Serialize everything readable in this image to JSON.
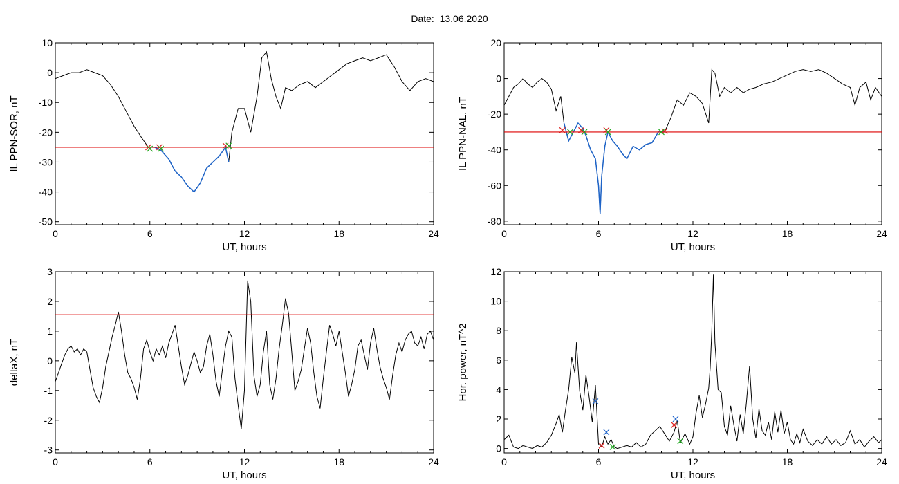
{
  "date_label": "Date:  13.06.2020",
  "colors": {
    "trace": "#000000",
    "threshold": "#dd0000",
    "highlight": "#1e64c8",
    "marker_red": "#dd2222",
    "marker_green": "#22aa22",
    "marker_blue": "#2266cc"
  },
  "chart_data": [
    {
      "type": "line",
      "title": "",
      "xlabel": "UT, hours",
      "ylabel": "IL PPN-SOR, nT",
      "xlim": [
        0,
        24
      ],
      "ylim": [
        -51,
        10
      ],
      "xticks": [
        0,
        6,
        12,
        18,
        24
      ],
      "yticks": [
        10,
        0,
        -10,
        -20,
        -30,
        -40,
        -50
      ],
      "threshold": -25,
      "highlight_range": [
        5.9,
        11.0
      ],
      "series": [
        {
          "x": [
            0,
            0.5,
            1,
            1.5,
            2,
            2.5,
            3,
            3.5,
            4,
            4.5,
            5,
            5.5,
            5.9,
            6.3,
            6.7,
            7.2,
            7.6,
            8,
            8.4,
            8.8,
            9.2,
            9.6,
            10,
            10.4,
            10.8,
            11,
            11.2,
            11.6,
            12,
            12.4,
            12.8,
            13.1,
            13.4,
            13.7,
            14,
            14.3,
            14.6,
            15,
            15.5,
            16,
            16.5,
            17,
            17.5,
            18,
            18.5,
            19,
            19.5,
            20,
            20.5,
            21,
            21.5,
            22,
            22.5,
            23,
            23.5,
            24
          ],
          "y": [
            -2,
            -1,
            0,
            0,
            1,
            0,
            -1,
            -4,
            -8,
            -13,
            -18,
            -22,
            -25,
            -25,
            -26,
            -29,
            -33,
            -35,
            -38,
            -40,
            -37,
            -32,
            -30,
            -28,
            -25,
            -30,
            -20,
            -12,
            -12,
            -20,
            -8,
            5,
            7,
            -2,
            -8,
            -12,
            -5,
            -6,
            -4,
            -3,
            -5,
            -3,
            -1,
            1,
            3,
            4,
            5,
            4,
            5,
            6,
            2,
            -3,
            -6,
            -3,
            -2,
            -3
          ]
        }
      ],
      "markers": [
        {
          "x": 5.9,
          "y": -25,
          "color": "red"
        },
        {
          "x": 6.0,
          "y": -25.5,
          "color": "green"
        },
        {
          "x": 6.6,
          "y": -25,
          "color": "red"
        },
        {
          "x": 6.7,
          "y": -25.5,
          "color": "green"
        },
        {
          "x": 10.8,
          "y": -24.5,
          "color": "red"
        },
        {
          "x": 11.0,
          "y": -24.5,
          "color": "green"
        }
      ]
    },
    {
      "type": "line",
      "title": "",
      "xlabel": "UT, hours",
      "ylabel": "IL PPN-NAL, nT",
      "xlim": [
        0,
        24
      ],
      "ylim": [
        -82,
        20
      ],
      "xticks": [
        0,
        6,
        12,
        18,
        24
      ],
      "yticks": [
        20,
        0,
        -20,
        -40,
        -60,
        -80
      ],
      "threshold": -30,
      "highlight_range": [
        3.8,
        10.2
      ],
      "series": [
        {
          "x": [
            0,
            0.3,
            0.6,
            0.9,
            1.2,
            1.5,
            1.8,
            2.1,
            2.4,
            2.7,
            3,
            3.3,
            3.6,
            3.8,
            4.1,
            4.4,
            4.7,
            5,
            5.2,
            5.5,
            5.8,
            6,
            6.1,
            6.2,
            6.4,
            6.6,
            6.9,
            7.2,
            7.5,
            7.8,
            8.2,
            8.6,
            9,
            9.4,
            9.8,
            10.2,
            10.6,
            11,
            11.4,
            11.8,
            12.2,
            12.6,
            13,
            13.2,
            13.4,
            13.7,
            14,
            14.4,
            14.8,
            15.2,
            15.6,
            16,
            16.5,
            17,
            17.5,
            18,
            18.5,
            19,
            19.5,
            20,
            20.5,
            21,
            21.5,
            22,
            22.3,
            22.6,
            23,
            23.3,
            23.6,
            24
          ],
          "y": [
            -15,
            -10,
            -5,
            -3,
            0,
            -3,
            -5,
            -2,
            0,
            -2,
            -6,
            -18,
            -10,
            -25,
            -35,
            -30,
            -25,
            -28,
            -32,
            -40,
            -45,
            -60,
            -76,
            -55,
            -38,
            -30,
            -35,
            -38,
            -42,
            -45,
            -38,
            -40,
            -37,
            -36,
            -30,
            -30,
            -22,
            -12,
            -15,
            -8,
            -10,
            -14,
            -25,
            5,
            3,
            -10,
            -5,
            -8,
            -5,
            -8,
            -6,
            -5,
            -3,
            -2,
            0,
            2,
            4,
            5,
            4,
            5,
            3,
            0,
            -3,
            -5,
            -15,
            -5,
            -2,
            -12,
            -5,
            -10
          ]
        }
      ],
      "markers": [
        {
          "x": 3.7,
          "y": -29,
          "color": "red"
        },
        {
          "x": 4.2,
          "y": -30,
          "color": "green"
        },
        {
          "x": 4.9,
          "y": -29,
          "color": "red"
        },
        {
          "x": 5.1,
          "y": -30,
          "color": "green"
        },
        {
          "x": 6.5,
          "y": -29,
          "color": "red"
        },
        {
          "x": 6.6,
          "y": -30,
          "color": "green"
        },
        {
          "x": 10.2,
          "y": -29.5,
          "color": "red"
        },
        {
          "x": 10.0,
          "y": -30,
          "color": "green"
        }
      ]
    },
    {
      "type": "line",
      "title": "",
      "xlabel": "UT, hours",
      "ylabel": "deltaX, nT",
      "xlim": [
        0,
        24
      ],
      "ylim": [
        -3.1,
        3
      ],
      "xticks": [
        0,
        6,
        12,
        18,
        24
      ],
      "yticks": [
        3,
        2,
        1,
        0,
        -1,
        -2,
        -3
      ],
      "threshold": 1.55,
      "series": [
        {
          "x": [
            0,
            0.2,
            0.4,
            0.6,
            0.8,
            1,
            1.2,
            1.4,
            1.6,
            1.8,
            2,
            2.2,
            2.4,
            2.6,
            2.8,
            3,
            3.2,
            3.4,
            3.6,
            3.8,
            4,
            4.2,
            4.4,
            4.6,
            4.8,
            5,
            5.2,
            5.4,
            5.6,
            5.8,
            6,
            6.2,
            6.4,
            6.6,
            6.8,
            7,
            7.2,
            7.4,
            7.6,
            7.8,
            8,
            8.2,
            8.4,
            8.6,
            8.8,
            9,
            9.2,
            9.4,
            9.6,
            9.8,
            10,
            10.2,
            10.4,
            10.6,
            10.8,
            11,
            11.2,
            11.4,
            11.6,
            11.8,
            12,
            12.2,
            12.4,
            12.6,
            12.8,
            13,
            13.2,
            13.4,
            13.6,
            13.8,
            14,
            14.2,
            14.4,
            14.6,
            14.8,
            15,
            15.2,
            15.4,
            15.6,
            15.8,
            16,
            16.2,
            16.4,
            16.6,
            16.8,
            17,
            17.2,
            17.4,
            17.6,
            17.8,
            18,
            18.2,
            18.4,
            18.6,
            18.8,
            19,
            19.2,
            19.4,
            19.6,
            19.8,
            20,
            20.2,
            20.4,
            20.6,
            20.8,
            21,
            21.2,
            21.4,
            21.6,
            21.8,
            22,
            22.2,
            22.4,
            22.6,
            22.8,
            23,
            23.2,
            23.4,
            23.6,
            23.8,
            24
          ],
          "y": [
            -0.7,
            -0.4,
            -0.1,
            0.2,
            0.4,
            0.5,
            0.3,
            0.4,
            0.2,
            0.4,
            0.3,
            -0.3,
            -0.9,
            -1.2,
            -1.4,
            -0.9,
            -0.2,
            0.3,
            0.8,
            1.2,
            1.65,
            1.0,
            0.2,
            -0.4,
            -0.6,
            -0.9,
            -1.3,
            -0.6,
            0.4,
            0.7,
            0.3,
            0.0,
            0.4,
            0.2,
            0.5,
            0.1,
            0.6,
            0.9,
            1.2,
            0.5,
            -0.2,
            -0.8,
            -0.5,
            -0.1,
            0.3,
            0.0,
            -0.4,
            -0.2,
            0.5,
            0.9,
            0.2,
            -0.7,
            -1.2,
            -0.3,
            0.5,
            1.0,
            0.8,
            -0.6,
            -1.5,
            -2.3,
            -1.0,
            2.7,
            2.0,
            -0.5,
            -1.2,
            -0.8,
            0.3,
            1.0,
            -0.8,
            -1.3,
            -0.6,
            0.4,
            1.2,
            2.1,
            1.6,
            0.3,
            -1.0,
            -0.7,
            -0.3,
            0.4,
            1.1,
            0.6,
            -0.4,
            -1.2,
            -1.6,
            -0.6,
            0.3,
            1.2,
            0.9,
            0.5,
            1.0,
            0.3,
            -0.4,
            -1.2,
            -0.8,
            -0.3,
            0.5,
            0.7,
            0.2,
            -0.3,
            0.6,
            1.1,
            0.4,
            -0.2,
            -0.6,
            -0.9,
            -1.3,
            -0.5,
            0.2,
            0.6,
            0.3,
            0.7,
            0.9,
            1.0,
            0.6,
            0.5,
            0.8,
            0.4,
            0.9,
            1.0,
            0.7
          ]
        }
      ]
    },
    {
      "type": "line",
      "title": "",
      "xlabel": "UT, hours",
      "ylabel": "Hor. power, nT^2",
      "xlim": [
        0,
        24
      ],
      "ylim": [
        -0.3,
        12
      ],
      "xticks": [
        0,
        6,
        12,
        18,
        24
      ],
      "yticks": [
        12,
        10,
        8,
        6,
        4,
        2,
        0
      ],
      "series": [
        {
          "x": [
            0,
            0.3,
            0.6,
            0.9,
            1.2,
            1.5,
            1.8,
            2.1,
            2.4,
            2.7,
            3,
            3.3,
            3.5,
            3.7,
            3.9,
            4.1,
            4.3,
            4.5,
            4.6,
            4.8,
            5,
            5.2,
            5.4,
            5.6,
            5.8,
            6,
            6.2,
            6.4,
            6.6,
            6.8,
            7,
            7.2,
            7.5,
            7.8,
            8.1,
            8.4,
            8.7,
            9,
            9.3,
            9.6,
            9.9,
            10.2,
            10.5,
            10.8,
            11,
            11.2,
            11.5,
            11.8,
            12,
            12.2,
            12.4,
            12.6,
            12.8,
            13,
            13.1,
            13.2,
            13.3,
            13.4,
            13.6,
            13.8,
            14,
            14.2,
            14.4,
            14.6,
            14.8,
            15,
            15.2,
            15.4,
            15.6,
            15.8,
            16,
            16.2,
            16.4,
            16.6,
            16.8,
            17,
            17.2,
            17.4,
            17.6,
            17.8,
            18,
            18.2,
            18.4,
            18.6,
            18.8,
            19,
            19.3,
            19.6,
            19.9,
            20.2,
            20.5,
            20.8,
            21.1,
            21.4,
            21.7,
            22,
            22.3,
            22.6,
            22.9,
            23.2,
            23.5,
            23.8,
            24
          ],
          "y": [
            0.6,
            0.9,
            0.1,
            0.0,
            0.2,
            0.1,
            0.0,
            0.2,
            0.1,
            0.4,
            0.9,
            1.7,
            2.3,
            1.1,
            2.6,
            4.0,
            6.2,
            5.1,
            7.2,
            3.9,
            2.6,
            5.0,
            3.5,
            1.8,
            4.3,
            0.3,
            0.1,
            0.8,
            0.3,
            0.6,
            0.1,
            0.0,
            0.1,
            0.2,
            0.1,
            0.4,
            0.1,
            0.3,
            0.9,
            1.2,
            1.5,
            1.0,
            0.5,
            1.1,
            1.9,
            0.4,
            1.0,
            0.3,
            0.8,
            2.4,
            3.6,
            2.1,
            3.0,
            4.1,
            5.5,
            8.0,
            11.8,
            7.2,
            4.0,
            3.8,
            1.5,
            0.9,
            2.9,
            1.6,
            0.5,
            2.3,
            1.0,
            3.1,
            5.6,
            2.0,
            0.7,
            2.7,
            1.2,
            0.9,
            1.8,
            0.6,
            2.5,
            1.1,
            2.6,
            1.0,
            1.8,
            0.6,
            0.3,
            1.0,
            0.4,
            1.3,
            0.5,
            0.2,
            0.6,
            0.3,
            0.8,
            0.3,
            0.6,
            0.2,
            0.4,
            1.2,
            0.3,
            0.6,
            0.1,
            0.5,
            0.8,
            0.4,
            0.6
          ]
        }
      ],
      "markers": [
        {
          "x": 5.8,
          "y": 3.2,
          "color": "blue"
        },
        {
          "x": 6.5,
          "y": 1.1,
          "color": "blue"
        },
        {
          "x": 6.2,
          "y": 0.2,
          "color": "red"
        },
        {
          "x": 6.9,
          "y": 0.1,
          "color": "green"
        },
        {
          "x": 10.9,
          "y": 2.0,
          "color": "blue"
        },
        {
          "x": 10.8,
          "y": 1.6,
          "color": "red"
        },
        {
          "x": 11.2,
          "y": 0.5,
          "color": "green"
        }
      ]
    }
  ]
}
